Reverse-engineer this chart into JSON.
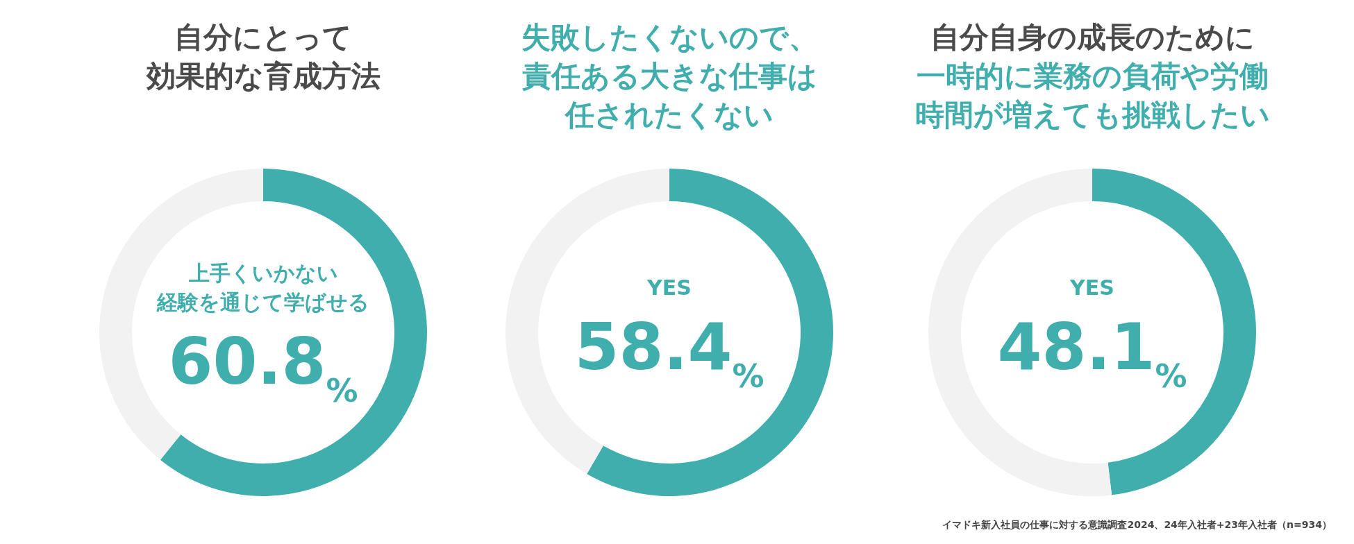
{
  "chart_data": [
    {
      "type": "donut",
      "title": "自分にとって効果的な育成方法",
      "categories": [
        "上手くいかない経験を通じて学ばせる",
        null
      ],
      "values": [
        60.8,
        39.2
      ],
      "colors": [
        "#40aeac",
        "#f2f2f2"
      ],
      "value_labels": [
        "60.8%",
        null
      ]
    },
    {
      "type": "donut",
      "subtitle": "失敗したくないので、責任ある大きな仕事は任されたくない",
      "categories": [
        "YES",
        null
      ],
      "values": [
        58.4,
        41.6
      ],
      "colors": [
        "#40aeac",
        "#f2f2f2"
      ],
      "value_labels": [
        "58.4%",
        null
      ]
    },
    {
      "type": "donut",
      "title": "自分自身の成長のために",
      "subtitle": "一時的に業務の負荷や労働時間が増えても挑戦したい",
      "categories": [
        "YES",
        null
      ],
      "values": [
        48.1,
        51.9
      ],
      "colors": [
        "#40aeac",
        "#f2f2f2"
      ],
      "value_labels": [
        "48.1%",
        null
      ],
      "annotations": [
        "イマドキ新入社員の仕事に対する意識調査2024、24年入社者+23年入社者（n=934）"
      ]
    }
  ]
}
